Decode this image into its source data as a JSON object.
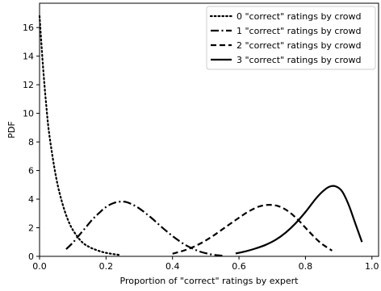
{
  "chart_data": {
    "type": "line",
    "xlabel": "Proportion of \"correct\" ratings by expert",
    "ylabel": "PDF",
    "xlim": [
      0.0,
      1.02
    ],
    "ylim": [
      0,
      17.7
    ],
    "xticks": [
      "0.0",
      "0.2",
      "0.4",
      "0.6",
      "0.8",
      "1.0"
    ],
    "xtick_values": [
      0.0,
      0.2,
      0.4,
      0.6,
      0.8,
      1.0
    ],
    "yticks": [
      "0",
      "2",
      "4",
      "6",
      "8",
      "10",
      "12",
      "14",
      "16"
    ],
    "ytick_values": [
      0,
      2,
      4,
      6,
      8,
      10,
      12,
      14,
      16
    ],
    "grid": false,
    "legend_position": "upper right",
    "series": [
      {
        "name": "0 \"correct\" ratings by crowd",
        "style": "dotted",
        "x": [
          0.0,
          0.01,
          0.02,
          0.03,
          0.05,
          0.07,
          0.09,
          0.11,
          0.13,
          0.15,
          0.17,
          0.19,
          0.21,
          0.24
        ],
        "y": [
          16.8,
          13.4,
          10.6,
          8.4,
          5.5,
          3.6,
          2.3,
          1.5,
          0.95,
          0.65,
          0.45,
          0.3,
          0.2,
          0.1
        ]
      },
      {
        "name": "1 \"correct\" ratings by crowd",
        "style": "dashdot",
        "x": [
          0.08,
          0.1,
          0.12,
          0.14,
          0.16,
          0.18,
          0.2,
          0.22,
          0.24,
          0.26,
          0.28,
          0.3,
          0.32,
          0.34,
          0.36,
          0.38,
          0.4,
          0.42,
          0.44,
          0.46,
          0.48,
          0.5,
          0.52,
          0.55
        ],
        "y": [
          0.5,
          0.95,
          1.5,
          2.05,
          2.6,
          3.05,
          3.45,
          3.7,
          3.82,
          3.8,
          3.62,
          3.35,
          3.0,
          2.62,
          2.2,
          1.8,
          1.42,
          1.08,
          0.78,
          0.55,
          0.35,
          0.22,
          0.12,
          0.04
        ]
      },
      {
        "name": "2 \"correct\" ratings by crowd",
        "style": "dashed",
        "x": [
          0.4,
          0.44,
          0.48,
          0.52,
          0.56,
          0.6,
          0.63,
          0.66,
          0.69,
          0.72,
          0.75,
          0.78,
          0.81,
          0.84,
          0.86,
          0.88
        ],
        "y": [
          0.18,
          0.45,
          0.85,
          1.4,
          2.05,
          2.7,
          3.15,
          3.48,
          3.6,
          3.5,
          3.12,
          2.5,
          1.75,
          1.05,
          0.7,
          0.4
        ]
      },
      {
        "name": "3 \"correct\" ratings by crowd",
        "style": "solid",
        "x": [
          0.59,
          0.62,
          0.65,
          0.68,
          0.71,
          0.74,
          0.77,
          0.8,
          0.83,
          0.85,
          0.87,
          0.89,
          0.91,
          0.93,
          0.95,
          0.97
        ],
        "y": [
          0.2,
          0.35,
          0.55,
          0.8,
          1.15,
          1.65,
          2.3,
          3.1,
          4.0,
          4.5,
          4.85,
          4.9,
          4.55,
          3.6,
          2.3,
          1.0
        ]
      }
    ]
  }
}
